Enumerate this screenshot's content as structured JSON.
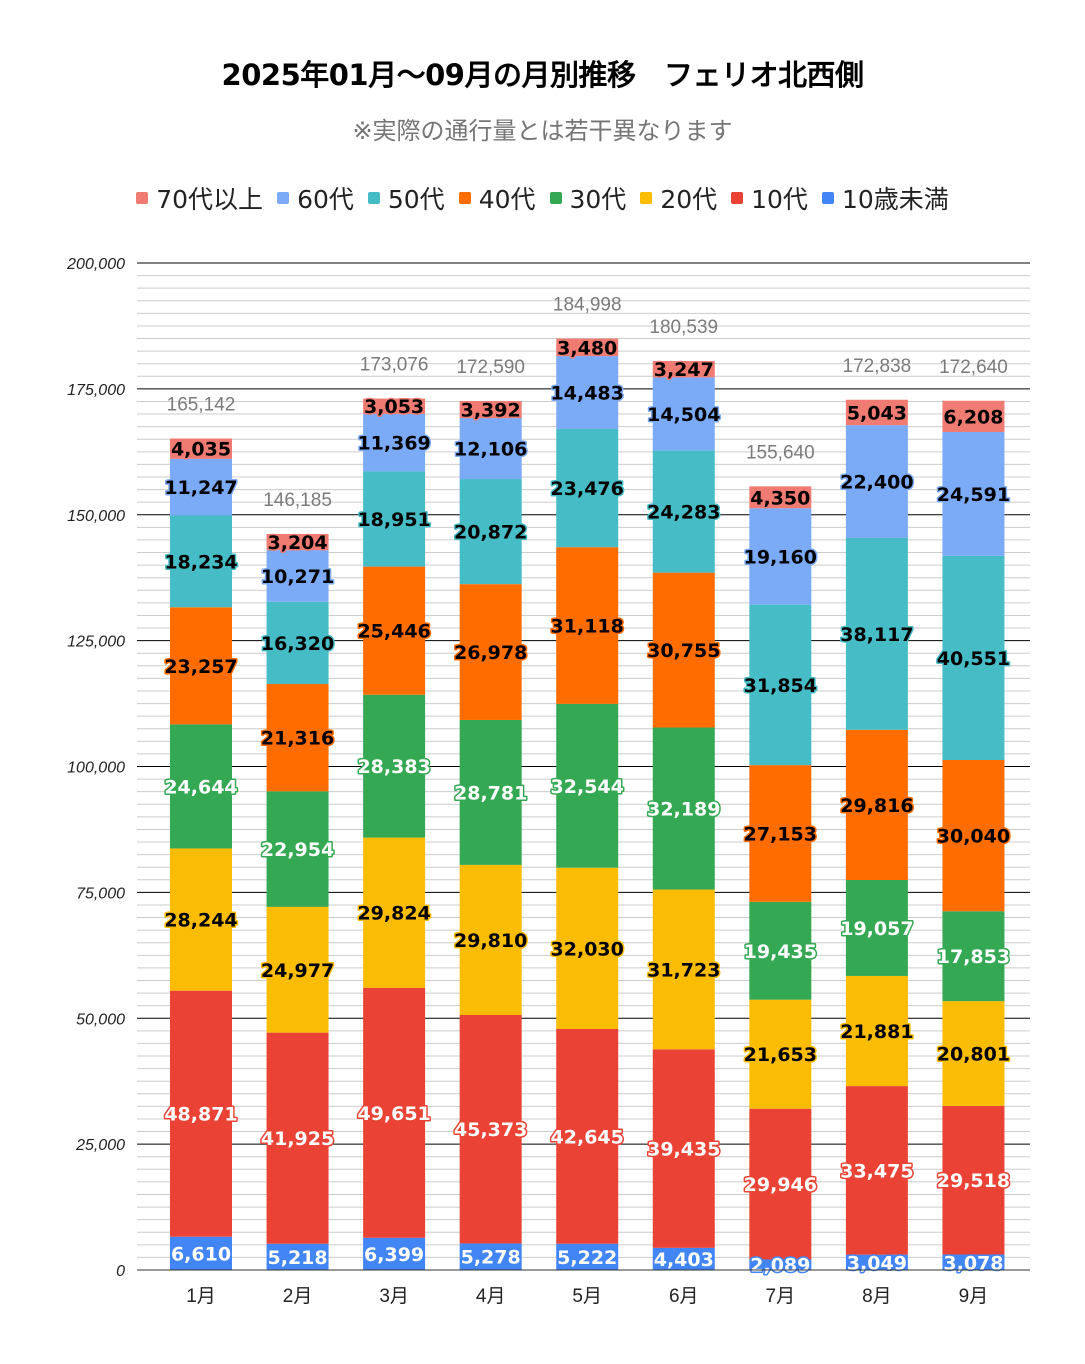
{
  "chart_data": {
    "type": "bar",
    "stacked": true,
    "title": "2025年01月～09月の月別推移　フェリオ北西側",
    "subtitle": "※実際の通行量とは若干異なります",
    "xlabel": "",
    "ylabel": "",
    "ylim": [
      0,
      200000
    ],
    "yticks": [
      "0",
      "25,000",
      "50,000",
      "75,000",
      "100,000",
      "125,000",
      "150,000",
      "175,000",
      "200,000"
    ],
    "ytick_values": [
      0,
      25000,
      50000,
      75000,
      100000,
      125000,
      150000,
      175000,
      200000
    ],
    "minor_grid_step": 2500,
    "grid": true,
    "legend_position": "top",
    "categories": [
      "1月",
      "2月",
      "3月",
      "4月",
      "5月",
      "6月",
      "7月",
      "8月",
      "9月"
    ],
    "series": [
      {
        "name": "10歳未満",
        "color": "#4285f4",
        "label_color": "#ffffff",
        "values": [
          6610,
          5218,
          6399,
          5278,
          5222,
          4403,
          2089,
          3049,
          3078
        ],
        "labels": [
          "6,610",
          "5,218",
          "6,399",
          "5,278",
          "5,222",
          "4,403",
          "2,089",
          "3,049",
          "3,078"
        ]
      },
      {
        "name": "10代",
        "color": "#ea4335",
        "label_color": "#ffffff",
        "values": [
          48871,
          41925,
          49651,
          45373,
          42645,
          39435,
          29946,
          33475,
          29518
        ],
        "labels": [
          "48,871",
          "41,925",
          "49,651",
          "45,373",
          "42,645",
          "39,435",
          "29,946",
          "33,475",
          "29,518"
        ]
      },
      {
        "name": "20代",
        "color": "#fbbc04",
        "label_color": "#000000",
        "values": [
          28244,
          24977,
          29824,
          29810,
          32030,
          31723,
          21653,
          21881,
          20801
        ],
        "labels": [
          "28,244",
          "24,977",
          "29,824",
          "29,810",
          "32,030",
          "31,723",
          "21,653",
          "21,881",
          "20,801"
        ]
      },
      {
        "name": "30代",
        "color": "#34a853",
        "label_color": "#ffffff",
        "values": [
          24644,
          22954,
          28383,
          28781,
          32544,
          32189,
          19435,
          19057,
          17853
        ],
        "labels": [
          "24,644",
          "22,954",
          "28,383",
          "28,781",
          "32,544",
          "32,189",
          "19,435",
          "19,057",
          "17,853"
        ]
      },
      {
        "name": "40代",
        "color": "#ff6d01",
        "label_color": "#000000",
        "values": [
          23257,
          21316,
          25446,
          26978,
          31118,
          30755,
          27153,
          29816,
          30040
        ],
        "labels": [
          "23,257",
          "21,316",
          "25,446",
          "26,978",
          "31,118",
          "30,755",
          "27,153",
          "29,816",
          "30,040"
        ]
      },
      {
        "name": "50代",
        "color": "#46bdc6",
        "label_color": "#000000",
        "values": [
          18234,
          16320,
          18951,
          20872,
          23476,
          24283,
          31854,
          38117,
          40551
        ],
        "labels": [
          "18,234",
          "16,320",
          "18,951",
          "20,872",
          "23,476",
          "24,283",
          "31,854",
          "38,117",
          "40,551"
        ]
      },
      {
        "name": "60代",
        "color": "#7baaf7",
        "label_color": "#000000",
        "values": [
          11247,
          10271,
          11369,
          12106,
          14483,
          14504,
          19160,
          22400,
          24591
        ],
        "labels": [
          "11,247",
          "10,271",
          "11,369",
          "12,106",
          "14,483",
          "14,504",
          "19,160",
          "22,400",
          "24,591"
        ]
      },
      {
        "name": "70代以上",
        "color": "#f07b72",
        "label_color": "#000000",
        "values": [
          4035,
          3204,
          3053,
          3392,
          3480,
          3247,
          4350,
          5043,
          6208
        ],
        "labels": [
          "4,035",
          "3,204",
          "3,053",
          "3,392",
          "3,480",
          "3,247",
          "4,350",
          "5,043",
          "6,208"
        ]
      }
    ],
    "totals": [
      165142,
      146185,
      173076,
      172590,
      184998,
      180539,
      155640,
      172838,
      172640
    ],
    "total_labels": [
      "165,142",
      "146,185",
      "173,076",
      "172,590",
      "184,998",
      "180,539",
      "155,640",
      "172,838",
      "172,640"
    ],
    "legend_order": [
      "70代以上",
      "60代",
      "50代",
      "40代",
      "30代",
      "20代",
      "10代",
      "10歳未満"
    ]
  }
}
